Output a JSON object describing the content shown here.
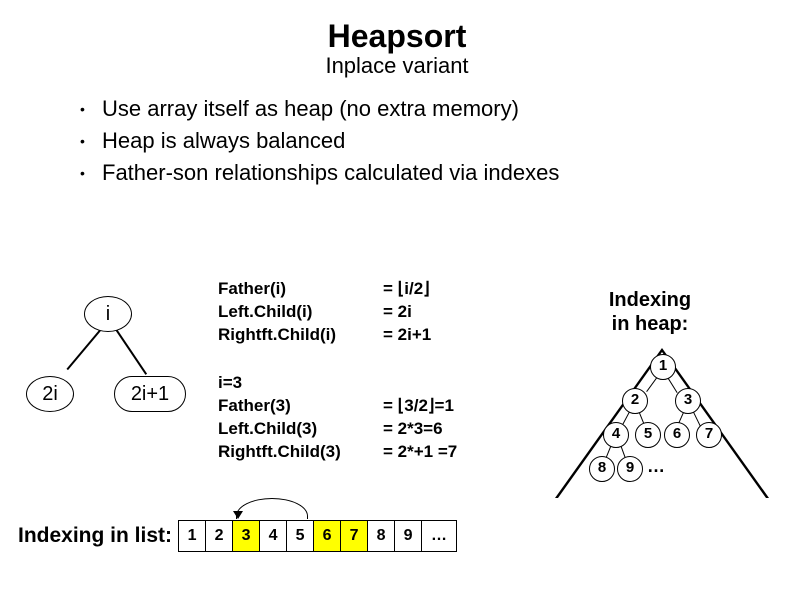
{
  "title": "Heapsort",
  "subtitle": "Inplace variant",
  "bullets": [
    "Use array itself as heap (no extra memory)",
    "Heap is always balanced",
    "Father-son relationships calculated via indexes"
  ],
  "mini_tree": {
    "root": "i",
    "left": "2i",
    "right": "2i+1"
  },
  "formulas": {
    "rows": [
      {
        "lhs": "Father(i)",
        "rhs": "= ⌊i/2⌋"
      },
      {
        "lhs": "Left.Child(i)",
        "rhs": "= 2i"
      },
      {
        "lhs": "Rightft.Child(i)",
        "rhs": "= 2i+1"
      }
    ]
  },
  "example": {
    "header": "i=3",
    "rows": [
      {
        "lhs": "Father(3)",
        "rhs": "= ⌊3/2⌋=1"
      },
      {
        "lhs": "Left.Child(3)",
        "rhs": "= 2*3=6"
      },
      {
        "lhs": "Rightft.Child(3)",
        "rhs": "= 2*+1 =7"
      }
    ]
  },
  "indexing_label_l1": "Indexing",
  "indexing_label_l2": "in heap:",
  "heap_nodes": [
    "1",
    "2",
    "3",
    "4",
    "5",
    "6",
    "7",
    "8",
    "9"
  ],
  "heap_dots": "…",
  "bottom_label": "Indexing in list:",
  "list_cells": [
    "1",
    "2",
    "3",
    "4",
    "5",
    "6",
    "7",
    "8",
    "9",
    "…"
  ],
  "list_highlight": [
    2,
    5,
    6
  ],
  "colors": {
    "highlight": "#ffff00",
    "background": "#ffffff",
    "line": "#000000"
  }
}
